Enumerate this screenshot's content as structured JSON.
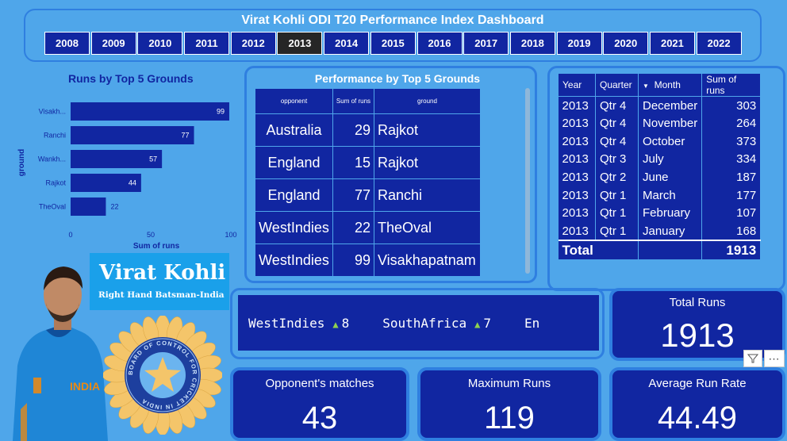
{
  "header": {
    "title": "Virat Kohli ODI T20 Performance Index Dashboard",
    "years": [
      "2008",
      "2009",
      "2010",
      "2011",
      "2012",
      "2013",
      "2014",
      "2015",
      "2016",
      "2017",
      "2018",
      "2019",
      "2020",
      "2021",
      "2022"
    ],
    "selected_year": "2013"
  },
  "bar_chart": {
    "title": "Runs by Top 5 Grounds",
    "xlabel": "Sum of runs",
    "ylabel": "ground",
    "x_ticks": [
      "0",
      "50",
      "100"
    ]
  },
  "chart_data": {
    "type": "bar",
    "orientation": "horizontal",
    "title": "Runs by Top 5 Grounds",
    "categories": [
      "Visakh...",
      "Ranchi",
      "Wankh...",
      "Rajkot",
      "TheOval"
    ],
    "values": [
      99,
      77,
      57,
      44,
      22
    ],
    "xlabel": "Sum of runs",
    "ylabel": "ground",
    "xlim": [
      0,
      100
    ]
  },
  "performance": {
    "title": "Performance by Top 5 Grounds",
    "columns": [
      "opponent",
      "Sum of runs",
      "ground"
    ],
    "rows": [
      {
        "opponent": "Australia",
        "runs": "29",
        "ground": "Rajkot"
      },
      {
        "opponent": "England",
        "runs": "15",
        "ground": "Rajkot"
      },
      {
        "opponent": "England",
        "runs": "77",
        "ground": "Ranchi"
      },
      {
        "opponent": "WestIndies",
        "runs": "22",
        "ground": "TheOval"
      },
      {
        "opponent": "WestIndies",
        "runs": "99",
        "ground": "Visakhapatnam"
      }
    ]
  },
  "monthly": {
    "columns": [
      "Year",
      "Quarter",
      "Month",
      "Sum of runs"
    ],
    "rows": [
      {
        "year": "2013",
        "quarter": "Qtr 4",
        "month": "December",
        "runs": "303"
      },
      {
        "year": "2013",
        "quarter": "Qtr 4",
        "month": "November",
        "runs": "264"
      },
      {
        "year": "2013",
        "quarter": "Qtr 4",
        "month": "October",
        "runs": "373"
      },
      {
        "year": "2013",
        "quarter": "Qtr 3",
        "month": "July",
        "runs": "334"
      },
      {
        "year": "2013",
        "quarter": "Qtr 2",
        "month": "June",
        "runs": "187"
      },
      {
        "year": "2013",
        "quarter": "Qtr 1",
        "month": "March",
        "runs": "177"
      },
      {
        "year": "2013",
        "quarter": "Qtr 1",
        "month": "February",
        "runs": "107"
      },
      {
        "year": "2013",
        "quarter": "Qtr 1",
        "month": "January",
        "runs": "168"
      }
    ],
    "total_label": "Total",
    "total_value": "1913"
  },
  "player": {
    "name": "Virat Kohli",
    "role": "Right Hand Batsman-India",
    "logo_text": "BOARD OF CONTROL FOR CRICKET IN INDIA"
  },
  "ticker": {
    "items": [
      {
        "team": "WestIndies",
        "value": "8"
      },
      {
        "team": "SouthAfrica",
        "value": "7"
      },
      {
        "team": "En",
        "value": ""
      }
    ]
  },
  "cards": {
    "total_runs": {
      "label": "Total Runs",
      "value": "1913"
    },
    "opponents": {
      "label": "Opponent's matches",
      "value": "43"
    },
    "max_runs": {
      "label": "Maximum Runs",
      "value": "119"
    },
    "avg_rate": {
      "label": "Average Run Rate",
      "value": "44.49"
    }
  },
  "icons": {
    "filter": "filter-icon",
    "more": "more-options-icon",
    "sort": "sort-desc-icon"
  },
  "colors": {
    "background": "#4fa6ea",
    "navy": "#1126a1",
    "border": "#2f7fe0",
    "selected_year": "#262626"
  }
}
